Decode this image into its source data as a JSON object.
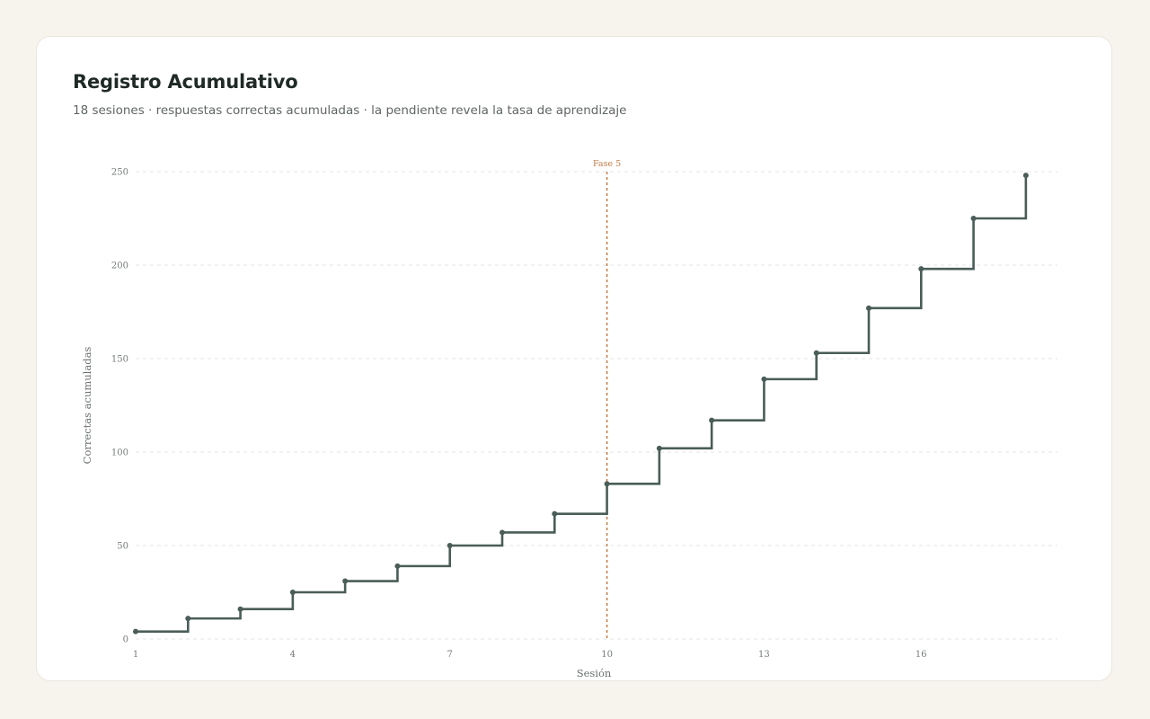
{
  "header": {
    "title": "Registro Acumulativo",
    "subtitle": "18 sesiones · respuestas correctas acumuladas · la pendiente revela la tasa de aprendizaje"
  },
  "chart_data": {
    "type": "line",
    "step": true,
    "title": "Registro Acumulativo",
    "xlabel": "Sesión",
    "ylabel": "Correctas acumuladas",
    "x": [
      1,
      2,
      3,
      4,
      5,
      6,
      7,
      8,
      9,
      10,
      11,
      12,
      13,
      14,
      15,
      16,
      17,
      18
    ],
    "series": [
      {
        "values": [
          4,
          11,
          16,
          25,
          31,
          39,
          50,
          57,
          67,
          83,
          102,
          117,
          139,
          153,
          177,
          198,
          225,
          248
        ]
      }
    ],
    "xlim": [
      1,
      18
    ],
    "ylim": [
      0,
      250
    ],
    "xticks": [
      1,
      4,
      7,
      10,
      13,
      16
    ],
    "yticks": [
      0,
      50,
      100,
      150,
      200,
      250
    ],
    "grid": "horizontal-dashed",
    "annotations": [
      {
        "x": 10,
        "label": "Fase 5"
      }
    ],
    "colors": {
      "line": "#4a5d58",
      "annotation": "#c07a45",
      "grid": "#e5e5e5"
    }
  }
}
